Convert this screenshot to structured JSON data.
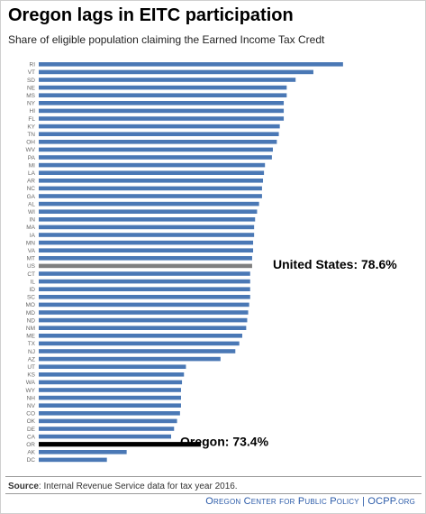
{
  "title": "Oregon lags in EITC participation",
  "subtitle": "Share of eligible population claiming the Earned Income Tax Credt",
  "source_label": "Source",
  "source_text": ": Internal Revenue Service data  for tax year 2016.",
  "footer": "Oregon Center for Public Policy | OCPP.org",
  "colors": {
    "bar": "#4a78b5",
    "us_bar": "#7f7f7f",
    "oregon_bar": "#000000",
    "footer": "#2a5aa8"
  },
  "chart_data": {
    "type": "bar",
    "orientation": "horizontal",
    "categories": [
      "RI",
      "VT",
      "SD",
      "NE",
      "MS",
      "NY",
      "HI",
      "FL",
      "KY",
      "TN",
      "OH",
      "WV",
      "PA",
      "MI",
      "LA",
      "AR",
      "NC",
      "GA",
      "AL",
      "WI",
      "IN",
      "MA",
      "IA",
      "MN",
      "VA",
      "MT",
      "US",
      "CT",
      "IL",
      "ID",
      "SC",
      "MO",
      "MD",
      "ND",
      "NM",
      "ME",
      "TX",
      "NJ",
      "AZ",
      "UT",
      "KS",
      "WA",
      "WY",
      "NH",
      "NV",
      "CO",
      "OK",
      "DE",
      "CA",
      "OR",
      "AK",
      "DC"
    ],
    "values": [
      87.8,
      84.8,
      83.0,
      82.1,
      82.1,
      81.8,
      81.8,
      81.8,
      81.4,
      81.3,
      81.1,
      80.7,
      80.6,
      79.9,
      79.8,
      79.7,
      79.6,
      79.6,
      79.3,
      79.1,
      78.9,
      78.8,
      78.8,
      78.7,
      78.7,
      78.6,
      78.6,
      78.4,
      78.4,
      78.4,
      78.4,
      78.3,
      78.2,
      78.1,
      78.0,
      77.6,
      77.3,
      76.9,
      75.4,
      71.9,
      71.7,
      71.5,
      71.4,
      71.4,
      71.4,
      71.3,
      71.0,
      70.7,
      70.4,
      73.4,
      65.9,
      63.9
    ],
    "highlight": {
      "US": "gray",
      "OR": "black"
    },
    "annotations": [
      {
        "category": "US",
        "text": "United States: 78.6%"
      },
      {
        "category": "OR",
        "text": "Oregon: 73.4%"
      }
    ],
    "xlim": [
      57,
      90
    ],
    "grid": false,
    "legend": false
  }
}
